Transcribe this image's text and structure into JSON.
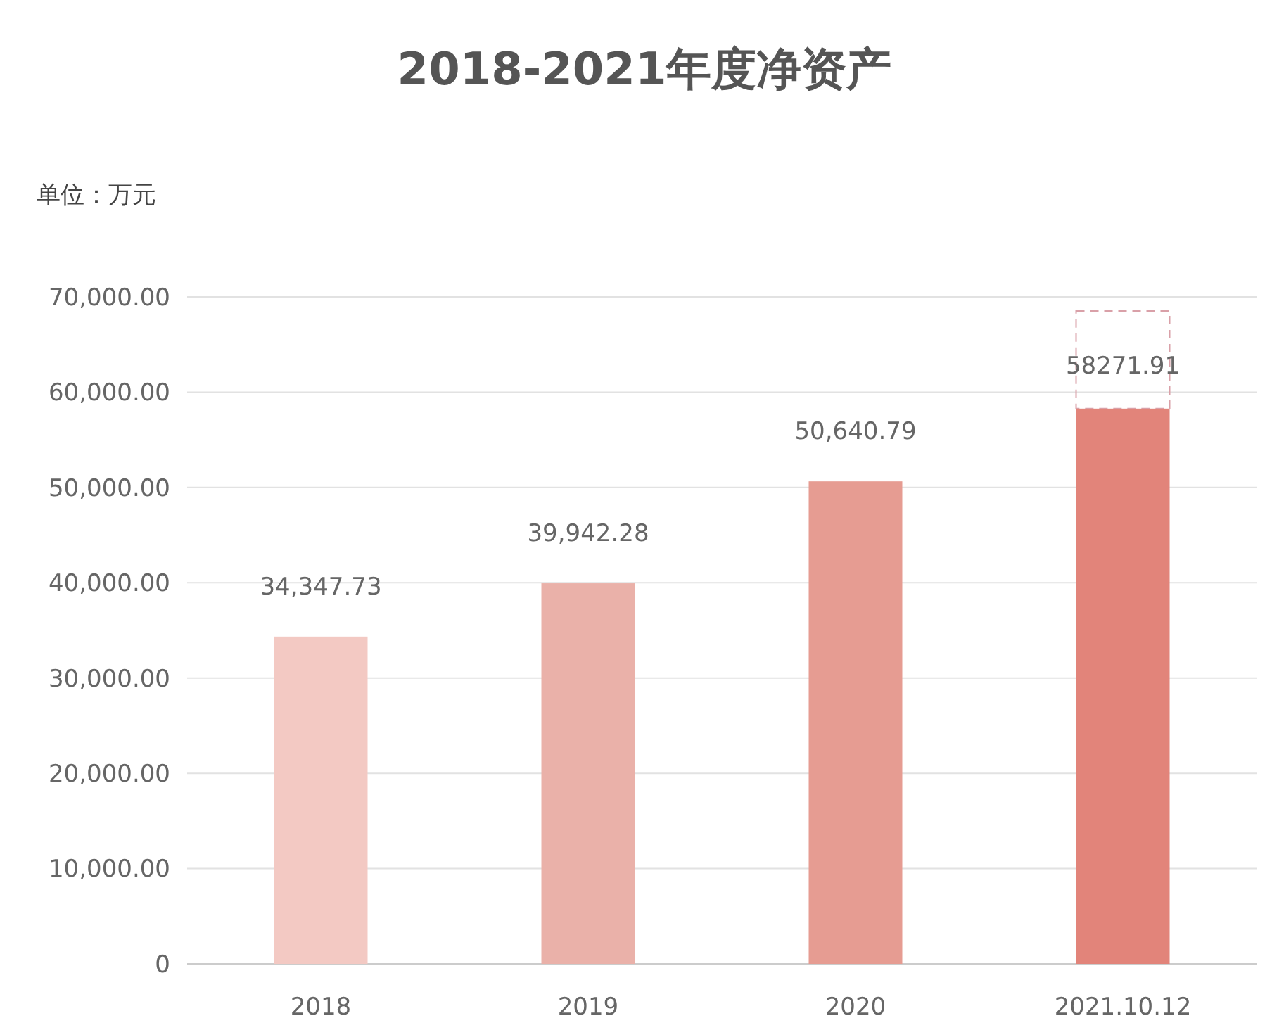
{
  "chart_data": {
    "type": "bar",
    "title": "2018-2021年度净资产",
    "ylabel": "单位：万元",
    "categories": [
      "2018",
      "2019",
      "2020",
      "2021.10.12"
    ],
    "values": [
      34347.73,
      39942.28,
      50640.79,
      58271.91
    ],
    "colors": [
      "#f3c9c3",
      "#eab1a9",
      "#e69c92",
      "#e2847a"
    ],
    "value_labels": [
      "34,347.73",
      "39,942.28",
      "50,640.79",
      "58271.91"
    ],
    "ylim": [
      0,
      70000
    ],
    "yticks": [
      {
        "value": 0,
        "label": "0"
      },
      {
        "value": 10000,
        "label": "10,000.00"
      },
      {
        "value": 20000,
        "label": "20,000.00"
      },
      {
        "value": 30000,
        "label": "30,000.00"
      },
      {
        "value": 40000,
        "label": "40,000.00"
      },
      {
        "value": 50000,
        "label": "50,000.00"
      },
      {
        "value": 60000,
        "label": "60,000.00"
      },
      {
        "value": 70000,
        "label": "70,000.00"
      }
    ],
    "grid": "y"
  }
}
